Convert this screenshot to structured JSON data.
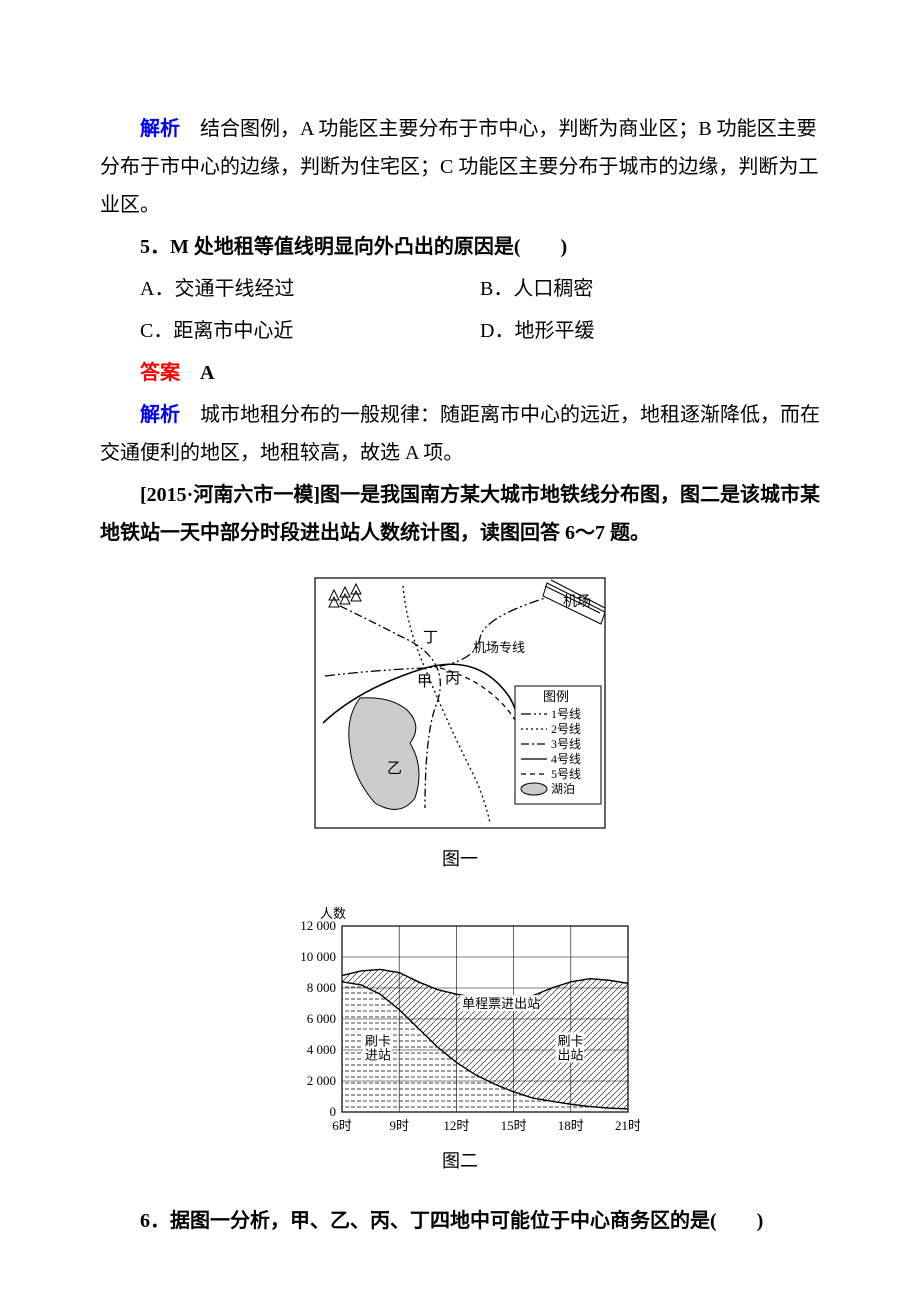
{
  "p1": {
    "label": "解析",
    "text_a": "　结合图例，A 功能区主要分布于市中心，判断为商业区；B 功能区主要分布于市中心的边缘，判断为住宅区；C 功能区主要分布于城市的边缘，判断为工业区。"
  },
  "q5": {
    "num": "5．",
    "stem": "M 处地租等值线明显向外凸出的原因是(　　)",
    "A": "A．交通干线经过",
    "B": "B．人口稠密",
    "C": "C．距离市中心近",
    "D": "D．地形平缓"
  },
  "ans5": {
    "label": "答案",
    "val": "　A"
  },
  "p2": {
    "label": "解析",
    "text_a": "　城市地租分布的一般规律：随距离市中心的远近，地租逐渐降低，而在交通便利的地区，地租较高，故选 A 项。"
  },
  "intro": {
    "pre": "[2015·河南六市一模]",
    "text": "图一是我国南方某大城市地铁线分布图，图二是该城市某地铁站一天中部分时段进出站人数统计图，读图回答 6～7 题。"
  },
  "fig1": {
    "caption": "图一",
    "labels": {
      "airport": "机场",
      "airportLine": "机场专线",
      "jia": "甲",
      "yi": "乙",
      "bing": "丙",
      "ding": "丁",
      "legendTitle": "图例",
      "line1": "1号线",
      "line2": "2号线",
      "line3": "3号线",
      "line4": "4号线",
      "line5": "5号线",
      "lake": "湖泊"
    },
    "colors": {
      "border": "#000000",
      "lake": "#cccccc",
      "bg": "#ffffff"
    }
  },
  "fig2": {
    "caption": "图二",
    "type": "area",
    "ylabel": "人数",
    "yticks": [
      "0",
      "2 000",
      "4 000",
      "6 000",
      "8 000",
      "10 000",
      "12 000"
    ],
    "ylim": [
      0,
      12000
    ],
    "xticks": [
      "6时",
      "9时",
      "12时",
      "15时",
      "18时",
      "21时"
    ],
    "xdomain": [
      6,
      21
    ],
    "series": {
      "top": {
        "label_a": "单程票进出站",
        "points": [
          [
            6,
            8800
          ],
          [
            7,
            9100
          ],
          [
            8,
            9200
          ],
          [
            9,
            9000
          ],
          [
            10,
            8400
          ],
          [
            11,
            7900
          ],
          [
            12,
            7600
          ],
          [
            13,
            7400
          ],
          [
            14,
            7300
          ],
          [
            15,
            7300
          ],
          [
            16,
            7500
          ],
          [
            17,
            8000
          ],
          [
            18,
            8400
          ],
          [
            19,
            8600
          ],
          [
            20,
            8500
          ],
          [
            21,
            8300
          ]
        ]
      },
      "mid": {
        "label_a": "刷卡\n进站",
        "label_b": "刷卡\n出站",
        "points": [
          [
            6,
            8400
          ],
          [
            7,
            8200
          ],
          [
            8,
            7600
          ],
          [
            9,
            6600
          ],
          [
            10,
            5400
          ],
          [
            11,
            4200
          ],
          [
            12,
            3200
          ],
          [
            13,
            2400
          ],
          [
            14,
            1800
          ],
          [
            15,
            1300
          ],
          [
            16,
            900
          ],
          [
            17,
            700
          ],
          [
            18,
            500
          ],
          [
            19,
            350
          ],
          [
            20,
            250
          ],
          [
            21,
            200
          ]
        ]
      }
    },
    "colors": {
      "axis": "#000000",
      "grid": "#000000",
      "bg": "#ffffff",
      "hatchA": "#000000",
      "hatchB": "#000000"
    },
    "grid_linewidth": 0.6,
    "curve_linewidth": 1.4,
    "font_axis": 13
  },
  "q6": {
    "num": "6．",
    "stem": "据图一分析，甲、乙、丙、丁四地中可能位于中心商务区的是(　　)"
  }
}
